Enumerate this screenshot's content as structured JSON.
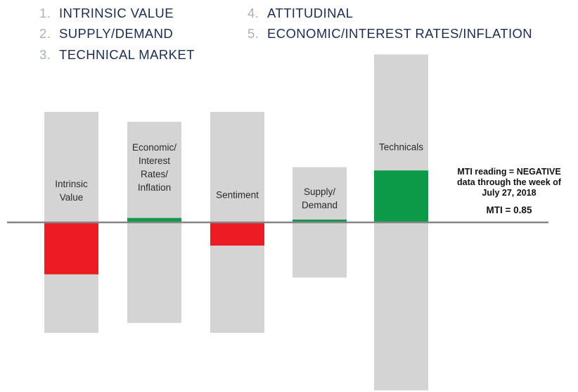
{
  "legend": [
    {
      "num": "1.",
      "label": "INTRINSIC VALUE"
    },
    {
      "num": "2.",
      "label": "SUPPLY/DEMAND"
    },
    {
      "num": "3.",
      "label": "TECHNICAL MARKET"
    },
    {
      "num": "4.",
      "label": "ATTITUDINAL"
    },
    {
      "num": "5.",
      "label": "ECONOMIC/INTEREST RATES/INFLATION"
    }
  ],
  "notes": {
    "reading_lines": [
      "MTI reading = NEGATIVE",
      "data through the week of",
      "July 27, 2018"
    ],
    "mti": "MTI = 0.85"
  },
  "chart_data": {
    "type": "bar",
    "categories": [
      "Intrinsic Value",
      "Economic/ Interest Rates/ Inflation",
      "Sentiment",
      "Supply/ Demand",
      "Technicals"
    ],
    "label_lines": [
      [
        "Intrinsic",
        "Value"
      ],
      [
        "Economic/",
        "Interest",
        "Rates/",
        "Inflation"
      ],
      [
        "Sentiment"
      ],
      [
        "Supply/",
        "Demand"
      ],
      [
        "Technicals"
      ]
    ],
    "values": [
      -0.47,
      0.04,
      -0.21,
      0.02,
      0.47
    ],
    "range_max": [
      1.0,
      0.91,
      1.0,
      0.5,
      1.52
    ],
    "range_min": [
      -1.0,
      -0.91,
      -1.0,
      -0.5,
      -1.52
    ],
    "colors": {
      "positive": "#0d9a48",
      "negative": "#ec1c24",
      "range": "#d4d4d4",
      "baseline": "#858585"
    }
  }
}
